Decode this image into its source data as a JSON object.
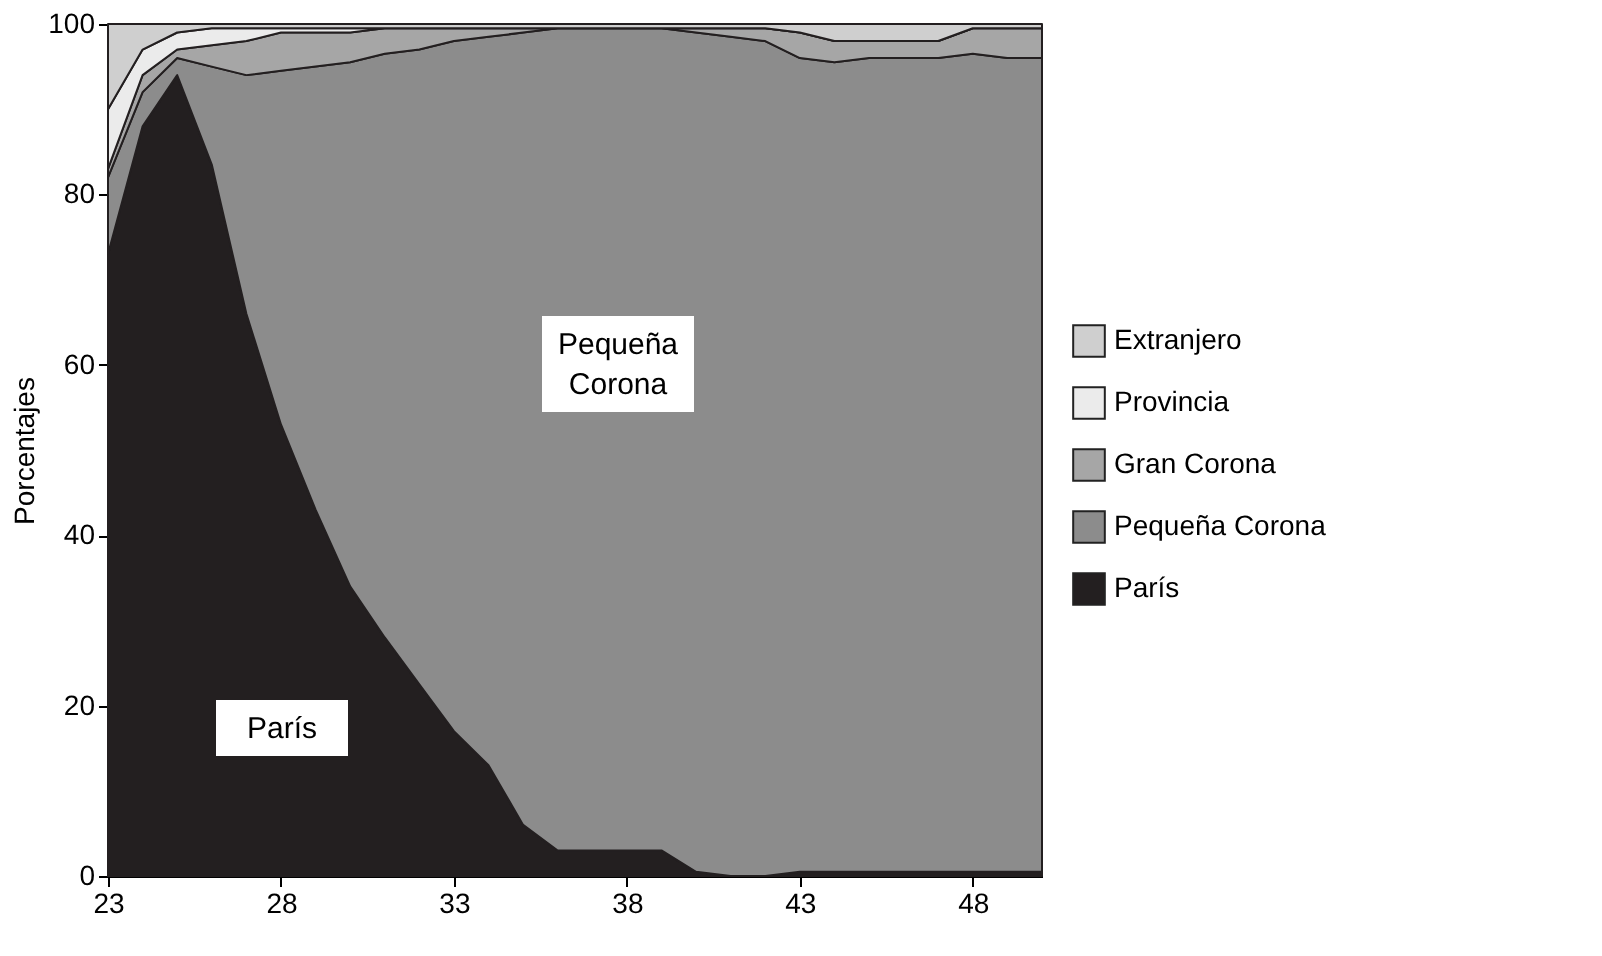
{
  "chart_data": {
    "type": "area",
    "stacked": true,
    "ylabel": "Porcentajes",
    "x": [
      23,
      24,
      25,
      26,
      27,
      28,
      29,
      30,
      31,
      32,
      33,
      34,
      35,
      36,
      37,
      38,
      39,
      40,
      41,
      42,
      43,
      44,
      45,
      46,
      47,
      48,
      49,
      50
    ],
    "xlim": [
      23,
      50
    ],
    "xticks": [
      23,
      28,
      33,
      38,
      43,
      48
    ],
    "ylim": [
      0,
      100
    ],
    "yticks": [
      0,
      20,
      40,
      60,
      80,
      100
    ],
    "legend": "right",
    "series": [
      {
        "name": "París",
        "color": "#231f20",
        "values": [
          73,
          88,
          94,
          83.5,
          66,
          53,
          43,
          34,
          28,
          22.5,
          17,
          13,
          6,
          3,
          3,
          3,
          3,
          0.5,
          0,
          0,
          0.5,
          0.5,
          0.5,
          0.5,
          0.5,
          0.5,
          0.5,
          0.5
        ]
      },
      {
        "name": "Pequeña Corona",
        "color": "#8c8c8c",
        "values": [
          9,
          4,
          2,
          11.5,
          28,
          41.5,
          52,
          61.5,
          68.5,
          74.5,
          81,
          85.5,
          93,
          96.5,
          96.5,
          96.5,
          96.5,
          98.5,
          98.5,
          98,
          95.5,
          95,
          95.5,
          95.5,
          95.5,
          96,
          95.5,
          95.5
        ]
      },
      {
        "name": "Gran Corona",
        "color": "#a6a6a6",
        "values": [
          1,
          2,
          1,
          2.5,
          4,
          4.5,
          4,
          3.5,
          3,
          2.5,
          1.5,
          1,
          0.5,
          0,
          0,
          0,
          0,
          0.5,
          1,
          1.5,
          3,
          2.5,
          2,
          2,
          2,
          3,
          3.5,
          3.5
        ]
      },
      {
        "name": "Provincia",
        "color": "#ebebeb",
        "values": [
          7,
          3,
          2,
          2,
          1.5,
          0.5,
          0.5,
          0.5,
          0,
          0,
          0,
          0,
          0,
          0,
          0,
          0,
          0,
          0,
          0,
          0,
          0,
          0,
          0,
          0,
          0,
          0,
          0,
          0
        ]
      },
      {
        "name": "Extranjero",
        "color": "#cfcfcf",
        "values": [
          10,
          3,
          1,
          0.5,
          0.5,
          0.5,
          0.5,
          0.5,
          0.5,
          0.5,
          0.5,
          0.5,
          0.5,
          0.5,
          0.5,
          0.5,
          0.5,
          0.5,
          0.5,
          0.5,
          1,
          2,
          2,
          2,
          2,
          0.5,
          0.5,
          0.5
        ]
      }
    ],
    "annotations": [
      "París",
      "Pequeña Corona"
    ]
  }
}
